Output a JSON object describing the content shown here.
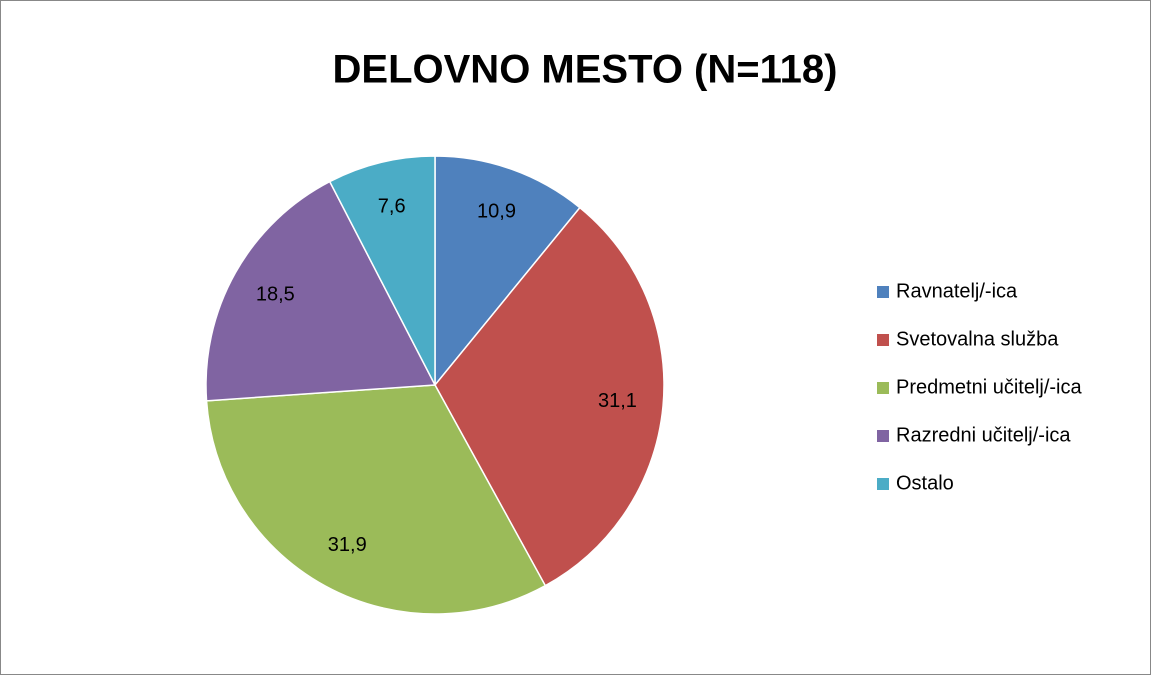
{
  "chart_data": {
    "type": "pie",
    "title": "DELOVNO MESTO (N=118)",
    "categories": [
      "Ravnatelj/-ica",
      "Svetovalna služba",
      "Predmetni učitelj/-ica",
      "Razredni učitelj/-ica",
      "Ostalo"
    ],
    "values": [
      10.9,
      31.1,
      31.9,
      18.5,
      7.6
    ],
    "value_labels": [
      "10,9",
      "31,1",
      "31,9",
      "18,5",
      "7,6"
    ],
    "colors": [
      "#4f81bd",
      "#c0504d",
      "#9bbb59",
      "#8064a2",
      "#4bacc6"
    ],
    "legend": "right"
  }
}
